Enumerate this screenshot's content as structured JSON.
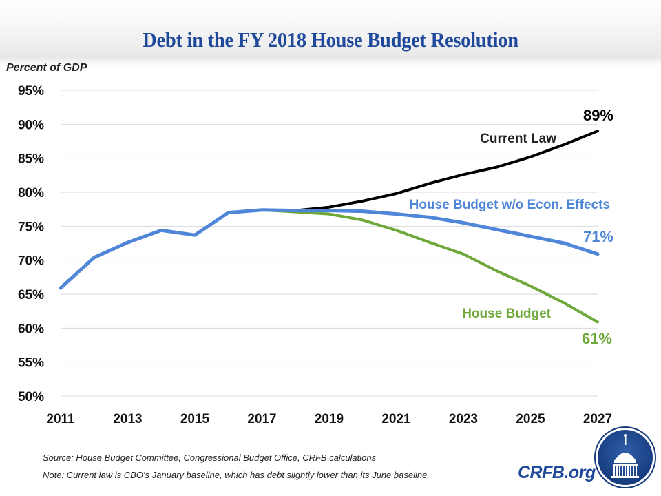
{
  "title": "Debt in the FY 2018 House Budget Resolution",
  "footer": {
    "source": "Source: House Budget Committee, Congressional Budget Office, CRFB calculations",
    "note": "Note: Current  law is CBO’s January baseline, which has debt slightly lower than its June baseline.",
    "brand": "CRFB.org"
  },
  "colors": {
    "title": "#1f4a9b",
    "current_law": "#000000",
    "house_budget_wo_econ": "#4f86d8",
    "house_budget": "#6ea83a",
    "gridline": "#d9d9d9"
  },
  "chart_data": {
    "type": "line",
    "title": "Debt in the FY 2018 House Budget Resolution",
    "xlabel": "",
    "ylabel": "Percent of GDP",
    "ylim": [
      50,
      95
    ],
    "xlim": [
      2011,
      2027
    ],
    "grid": true,
    "y_ticks": [
      "50%",
      "55%",
      "60%",
      "65%",
      "70%",
      "75%",
      "80%",
      "85%",
      "90%",
      "95%"
    ],
    "y_tick_values": [
      50,
      55,
      60,
      65,
      70,
      75,
      80,
      85,
      90,
      95
    ],
    "x_ticks": [
      "2011",
      "2013",
      "2015",
      "2017",
      "2019",
      "2021",
      "2023",
      "2025",
      "2027"
    ],
    "x_tick_values": [
      2011,
      2013,
      2015,
      2017,
      2019,
      2021,
      2023,
      2025,
      2027
    ],
    "series": [
      {
        "name": "Current Law",
        "label": "Current Law",
        "end_label": "89%",
        "color": "#000000",
        "x": [
          2011,
          2012,
          2013,
          2014,
          2015,
          2016,
          2017,
          2018,
          2019,
          2020,
          2021,
          2022,
          2023,
          2024,
          2025,
          2026,
          2027
        ],
        "values": [
          65.9,
          70.4,
          72.6,
          74.4,
          73.7,
          77.0,
          77.4,
          77.3,
          77.8,
          78.7,
          79.8,
          81.3,
          82.6,
          83.7,
          85.2,
          87.0,
          89.0
        ]
      },
      {
        "name": "House Budget",
        "label": "House Budget",
        "end_label": "61%",
        "color": "#6ea83a",
        "x": [
          2011,
          2012,
          2013,
          2014,
          2015,
          2016,
          2017,
          2018,
          2019,
          2020,
          2021,
          2022,
          2023,
          2024,
          2025,
          2026,
          2027
        ],
        "values": [
          65.9,
          70.4,
          72.6,
          74.4,
          73.7,
          77.0,
          77.4,
          77.1,
          76.8,
          75.9,
          74.4,
          72.6,
          70.9,
          68.4,
          66.2,
          63.7,
          60.9
        ]
      },
      {
        "name": "House Budget w/o Econ. Effects",
        "label": "House Budget w/o Econ. Effects",
        "end_label": "71%",
        "color": "#4f86d8",
        "x": [
          2011,
          2012,
          2013,
          2014,
          2015,
          2016,
          2017,
          2018,
          2019,
          2020,
          2021,
          2022,
          2023,
          2024,
          2025,
          2026,
          2027
        ],
        "values": [
          65.9,
          70.4,
          72.6,
          74.4,
          73.7,
          77.0,
          77.4,
          77.3,
          77.3,
          77.2,
          76.8,
          76.3,
          75.5,
          74.5,
          73.5,
          72.5,
          70.9
        ]
      }
    ],
    "annotations": [
      "Current Law",
      "House Budget w/o Econ. Effects",
      "House Budget",
      "89%",
      "71%",
      "61%"
    ]
  }
}
